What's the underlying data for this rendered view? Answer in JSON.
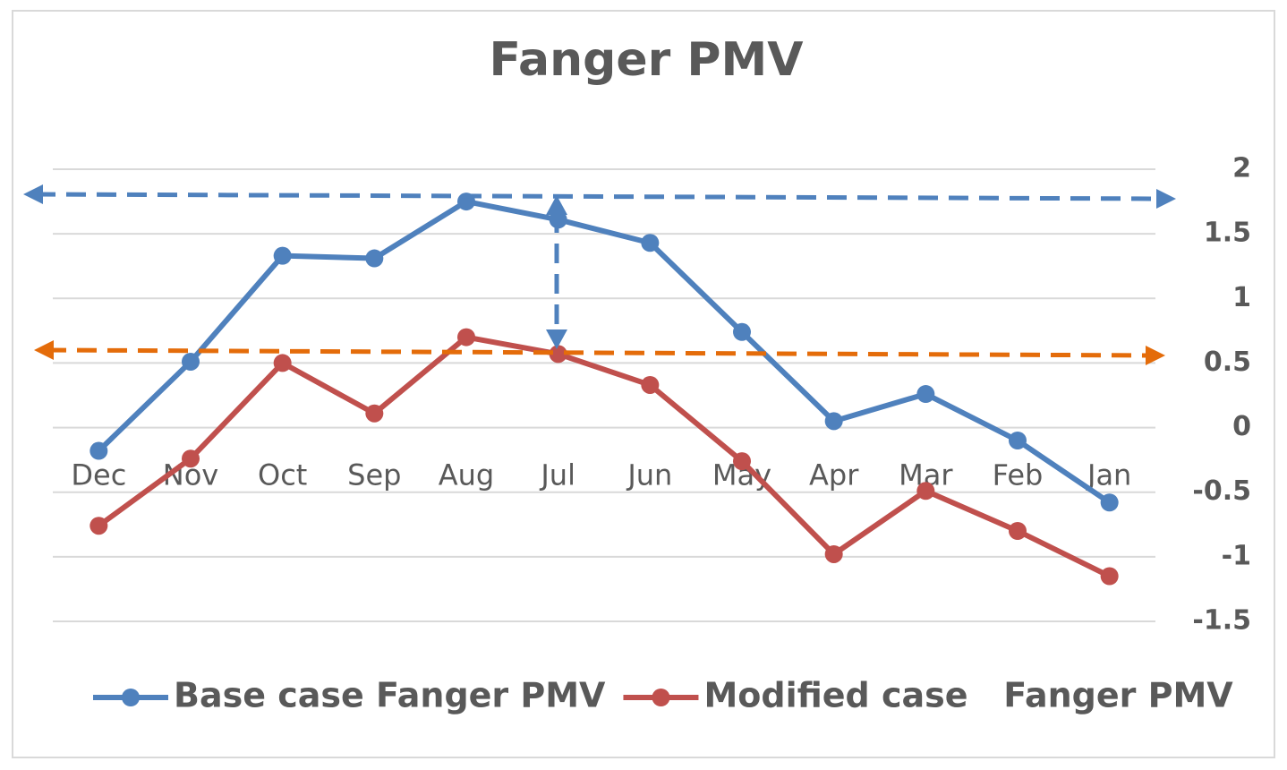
{
  "chart_data": {
    "type": "line",
    "title": "Fanger PMV",
    "categories": [
      "Dec",
      "Nov",
      "Oct",
      "Sep",
      "Aug",
      "Jul",
      "Jun",
      "May",
      "Apr",
      "Mar",
      "Feb",
      "Jan"
    ],
    "series": [
      {
        "name": "Base case Fanger PMV",
        "color": "#4f81bd",
        "values": [
          -0.18,
          0.51,
          1.33,
          1.31,
          1.75,
          1.61,
          1.43,
          0.74,
          0.05,
          0.26,
          -0.1,
          -0.58
        ]
      },
      {
        "name": "Modified case   Fanger PMV",
        "color": "#c0504d",
        "values": [
          -0.76,
          -0.24,
          0.5,
          0.11,
          0.7,
          0.57,
          0.33,
          -0.26,
          -0.98,
          -0.49,
          -0.8,
          -1.15
        ]
      }
    ],
    "ylim": [
      -1.5,
      2
    ],
    "yticks": [
      -1.5,
      -1,
      -0.5,
      0,
      0.5,
      1,
      1.5,
      2
    ],
    "grid": true,
    "y_axis_side": "right",
    "legend": "bottom"
  }
}
